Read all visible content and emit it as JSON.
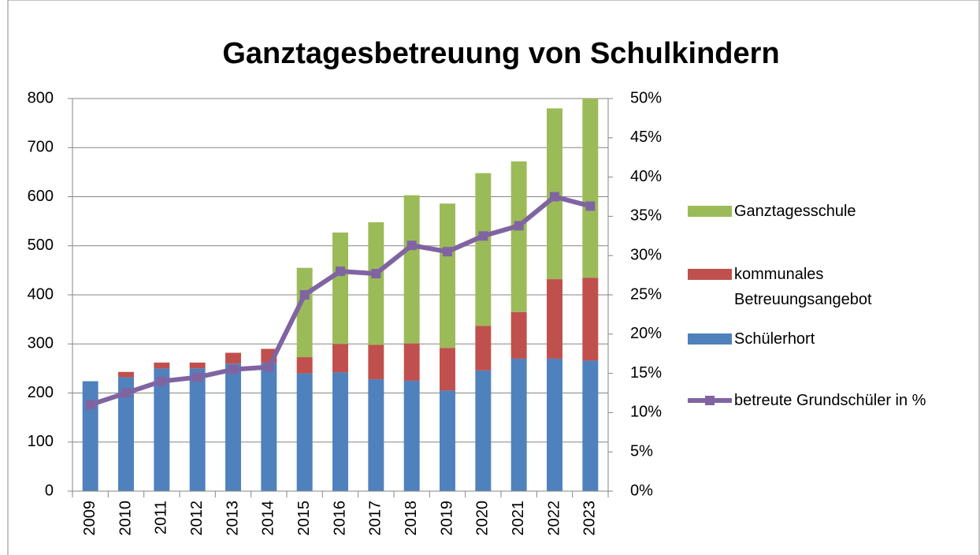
{
  "chart_data": {
    "type": "bar-line",
    "title": "Ganztagesbetreuung von Schulkindern",
    "categories": [
      "2009",
      "2010",
      "2011",
      "2012",
      "2013",
      "2014",
      "2015",
      "2016",
      "2017",
      "2018",
      "2019",
      "2020",
      "2021",
      "2022",
      "2023"
    ],
    "series": [
      {
        "name": "Schülerhort",
        "color": "#4f81bd",
        "type": "bar",
        "values": [
          224,
          232,
          250,
          250,
          260,
          262,
          240,
          242,
          228,
          225,
          205,
          246,
          270,
          270,
          266
        ]
      },
      {
        "name": "kommunales Betreuungsangebot",
        "color": "#c0504d",
        "type": "bar",
        "values": [
          0,
          11,
          12,
          12,
          22,
          28,
          33,
          58,
          70,
          76,
          87,
          91,
          95,
          162,
          169
        ]
      },
      {
        "name": "Ganztagesschule",
        "color": "#9bbb59",
        "type": "bar",
        "values": [
          0,
          0,
          0,
          0,
          0,
          0,
          182,
          227,
          250,
          302,
          294,
          311,
          307,
          348,
          365
        ]
      },
      {
        "name": "betreute Grundschüler in %",
        "color": "#8064a2",
        "type": "line",
        "axis": "y2",
        "values": [
          11,
          12.5,
          14,
          14.5,
          15.5,
          15.8,
          25,
          28,
          27.7,
          31.3,
          30.5,
          32.5,
          33.8,
          37.5,
          36.3
        ]
      }
    ],
    "ylim": [
      0,
      800
    ],
    "yticks": [
      0,
      100,
      200,
      300,
      400,
      500,
      600,
      700,
      800
    ],
    "y2lim": [
      0,
      50
    ],
    "y2ticks": [
      {
        "value": 0,
        "label": "0%"
      },
      {
        "value": 5,
        "label": "5%"
      },
      {
        "value": 10,
        "label": "10%"
      },
      {
        "value": 15,
        "label": "15%"
      },
      {
        "value": 20,
        "label": "20%"
      },
      {
        "value": 25,
        "label": "25%"
      },
      {
        "value": 30,
        "label": "30%"
      },
      {
        "value": 35,
        "label": "35%"
      },
      {
        "value": 40,
        "label": "40%"
      },
      {
        "value": 45,
        "label": "45%"
      },
      {
        "value": 50,
        "label": "50%"
      }
    ],
    "grid": true,
    "legend": "right"
  }
}
